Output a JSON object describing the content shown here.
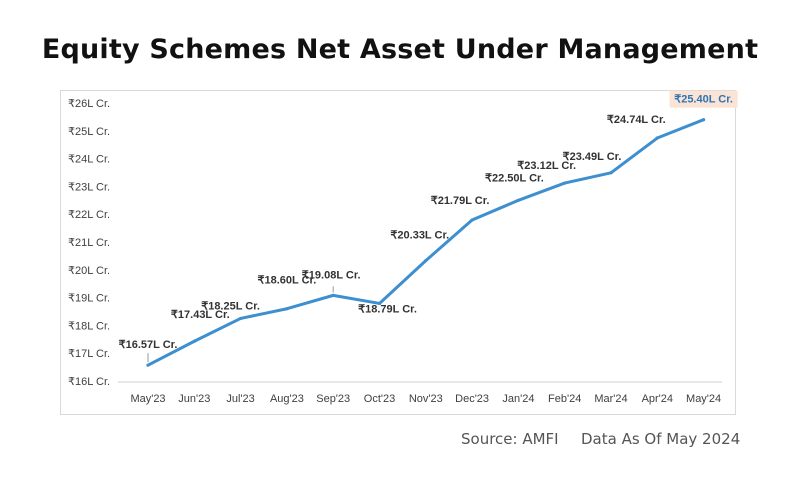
{
  "title": "Equity Schemes Net Asset Under Management",
  "footer": {
    "source": "Source: AMFI",
    "as_of": "Data As Of May 2024"
  },
  "colors": {
    "line": "#3d8fcf",
    "highlight_bg": "#fbe3d6",
    "highlight_text": "#2e75b6"
  },
  "chart_data": {
    "type": "line",
    "title": "",
    "xlabel": "",
    "ylabel": "",
    "categories": [
      "May'23",
      "Jun'23",
      "Jul'23",
      "Aug'23",
      "Sep'23",
      "Oct'23",
      "Nov'23",
      "Dec'23",
      "Jan'24",
      "Feb'24",
      "Mar'24",
      "Apr'24",
      "May'24"
    ],
    "series": [
      {
        "values": [
          16.57,
          17.43,
          18.25,
          18.6,
          19.08,
          18.79,
          20.33,
          21.79,
          22.5,
          23.12,
          23.49,
          24.74,
          25.4
        ],
        "labels": [
          "₹16.57L Cr.",
          "₹17.43L Cr.",
          "₹18.25L Cr.",
          "₹18.60L Cr.",
          "₹19.08L Cr.",
          "₹18.79L Cr.",
          "₹20.33L Cr.",
          "₹21.79L Cr.",
          "₹22.50L Cr.",
          "₹23.12L Cr.",
          "₹23.49L Cr.",
          "₹24.74L Cr.",
          "₹25.40L Cr."
        ]
      }
    ],
    "ylim": [
      16,
      26
    ],
    "yticks": [
      "₹16L Cr.",
      "₹17L Cr.",
      "₹18L Cr.",
      "₹19L Cr.",
      "₹20L Cr.",
      "₹21L Cr.",
      "₹22L Cr.",
      "₹23L Cr.",
      "₹24L Cr.",
      "₹25L Cr.",
      "₹26L Cr."
    ],
    "grid": false,
    "legend": "none",
    "highlighted_point": "May'24"
  }
}
